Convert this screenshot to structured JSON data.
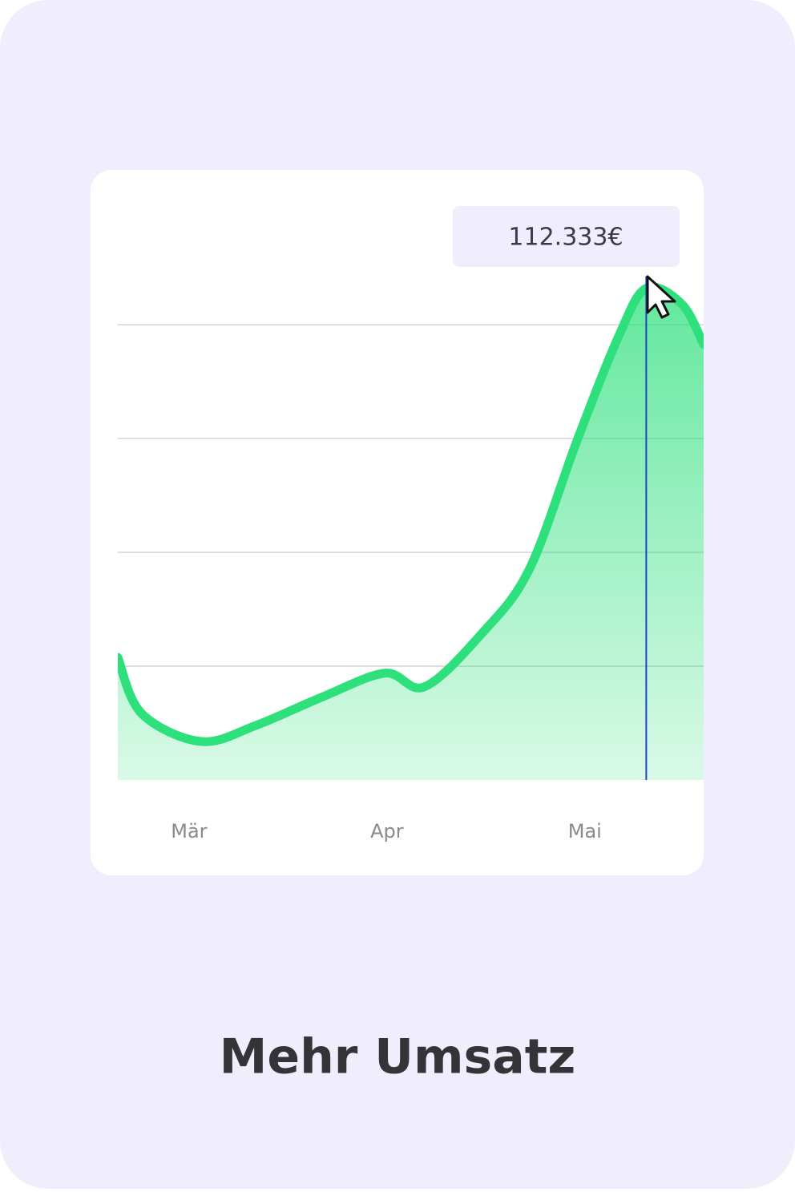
{
  "chart_data": {
    "type": "line",
    "title": "Mehr Umsatz",
    "x": [
      -0.36,
      -0.24,
      0.06,
      0.34,
      0.67,
      0.99,
      1.19,
      1.48,
      1.72,
      1.96,
      2.17,
      2.31,
      2.49,
      2.6
    ],
    "series": [
      {
        "color": "#2ee07c",
        "values": [
          28000,
          15200,
          8800,
          12500,
          18900,
          24400,
          21300,
          33500,
          48200,
          77500,
          101300,
          112333,
          108700,
          99500
        ],
        "value_labels": [
          null,
          null,
          null,
          null,
          null,
          null,
          null,
          null,
          null,
          null,
          null,
          "112.333€",
          null,
          null
        ]
      }
    ],
    "xlim": [
      -0.36,
      2.6
    ],
    "xticks": [
      {
        "value": 0,
        "label": "Mär"
      },
      {
        "value": 1,
        "label": "Apr"
      },
      {
        "value": 2,
        "label": "Mai"
      }
    ],
    "ylim": [
      0,
      115000
    ],
    "yticks": [
      26000,
      52000,
      78000,
      104000
    ],
    "grid": true
  }
}
